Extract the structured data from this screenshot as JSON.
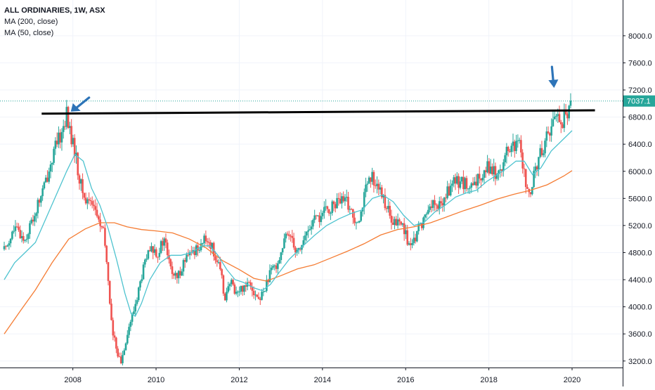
{
  "legend": {
    "title": "ALL ORDINARIES, 1W, ASX",
    "ma1": "MA (200, close)",
    "ma2": "MA (50, close)"
  },
  "chart_data": {
    "type": "candlestick",
    "symbol": "ALL ORDINARIES",
    "interval": "1W",
    "exchange": "ASX",
    "last_price": "7037.1",
    "last_value": 7037.1,
    "ylim": [
      2850,
      8450
    ],
    "xlim": [
      2006.35,
      2020.8
    ],
    "y_ticks": [
      3200,
      3600,
      4000,
      4400,
      4800,
      5200,
      5600,
      6000,
      6400,
      6800,
      7200,
      7600,
      8000
    ],
    "y_tick_labels": [
      "3200.0",
      "3600.0",
      "4000.0",
      "4400.0",
      "4800.0",
      "5200.0",
      "5600.0",
      "6000.0",
      "6400.0",
      "6800.0",
      "7200.0",
      "7600.0",
      "8000.0"
    ],
    "x_ticks": [
      2008,
      2010,
      2012,
      2014,
      2016,
      2018,
      2020
    ],
    "x_tick_labels": [
      "2008",
      "2010",
      "2012",
      "2014",
      "2016",
      "2018",
      "2020"
    ],
    "price_path": [
      [
        2006.35,
        4850
      ],
      [
        2006.6,
        5150
      ],
      [
        2006.85,
        5000
      ],
      [
        2007.1,
        5400
      ],
      [
        2007.35,
        5850
      ],
      [
        2007.55,
        6300
      ],
      [
        2007.75,
        6600
      ],
      [
        2007.85,
        6850
      ],
      [
        2007.95,
        6500
      ],
      [
        2008.05,
        6300
      ],
      [
        2008.15,
        5900
      ],
      [
        2008.3,
        5550
      ],
      [
        2008.45,
        5600
      ],
      [
        2008.6,
        5300
      ],
      [
        2008.75,
        5050
      ],
      [
        2008.85,
        4400
      ],
      [
        2008.95,
        3600
      ],
      [
        2009.05,
        3400
      ],
      [
        2009.15,
        3150
      ],
      [
        2009.3,
        3600
      ],
      [
        2009.45,
        3900
      ],
      [
        2009.6,
        4300
      ],
      [
        2009.75,
        4700
      ],
      [
        2009.9,
        4850
      ],
      [
        2010.05,
        4800
      ],
      [
        2010.2,
        5000
      ],
      [
        2010.35,
        4550
      ],
      [
        2010.5,
        4400
      ],
      [
        2010.65,
        4650
      ],
      [
        2010.8,
        4750
      ],
      [
        2010.95,
        4850
      ],
      [
        2011.1,
        4950
      ],
      [
        2011.25,
        5000
      ],
      [
        2011.4,
        4800
      ],
      [
        2011.55,
        4500
      ],
      [
        2011.65,
        4150
      ],
      [
        2011.8,
        4350
      ],
      [
        2011.95,
        4200
      ],
      [
        2012.1,
        4300
      ],
      [
        2012.25,
        4400
      ],
      [
        2012.4,
        4150
      ],
      [
        2012.5,
        4100
      ],
      [
        2012.65,
        4350
      ],
      [
        2012.8,
        4550
      ],
      [
        2012.95,
        4700
      ],
      [
        2013.1,
        5000
      ],
      [
        2013.25,
        5100
      ],
      [
        2013.35,
        4850
      ],
      [
        2013.45,
        4850
      ],
      [
        2013.6,
        5050
      ],
      [
        2013.75,
        5250
      ],
      [
        2013.9,
        5300
      ],
      [
        2014.05,
        5400
      ],
      [
        2014.2,
        5450
      ],
      [
        2014.35,
        5550
      ],
      [
        2014.5,
        5550
      ],
      [
        2014.6,
        5550
      ],
      [
        2014.75,
        5300
      ],
      [
        2014.9,
        5350
      ],
      [
        2015.05,
        5750
      ],
      [
        2015.2,
        5900
      ],
      [
        2015.3,
        5850
      ],
      [
        2015.4,
        5650
      ],
      [
        2015.55,
        5500
      ],
      [
        2015.65,
        5200
      ],
      [
        2015.8,
        5250
      ],
      [
        2015.95,
        5200
      ],
      [
        2016.05,
        4950
      ],
      [
        2016.15,
        4850
      ],
      [
        2016.3,
        5150
      ],
      [
        2016.45,
        5300
      ],
      [
        2016.6,
        5550
      ],
      [
        2016.75,
        5450
      ],
      [
        2016.9,
        5550
      ],
      [
        2017.05,
        5750
      ],
      [
        2017.2,
        5850
      ],
      [
        2017.35,
        5850
      ],
      [
        2017.5,
        5750
      ],
      [
        2017.65,
        5750
      ],
      [
        2017.8,
        5950
      ],
      [
        2017.95,
        6100
      ],
      [
        2018.1,
        6000
      ],
      [
        2018.2,
        5950
      ],
      [
        2018.35,
        6150
      ],
      [
        2018.5,
        6350
      ],
      [
        2018.65,
        6350
      ],
      [
        2018.75,
        6400
      ],
      [
        2018.85,
        5950
      ],
      [
        2018.95,
        5700
      ],
      [
        2019.0,
        5550
      ],
      [
        2019.1,
        6000
      ],
      [
        2019.2,
        6200
      ],
      [
        2019.3,
        6350
      ],
      [
        2019.45,
        6600
      ],
      [
        2019.55,
        6750
      ],
      [
        2019.65,
        6850
      ],
      [
        2019.75,
        6700
      ],
      [
        2019.85,
        6850
      ],
      [
        2019.95,
        6900
      ],
      [
        2020.0,
        7037
      ]
    ],
    "ma50": [
      [
        2006.35,
        4400
      ],
      [
        2006.6,
        4650
      ],
      [
        2006.85,
        4800
      ],
      [
        2007.1,
        4950
      ],
      [
        2007.35,
        5300
      ],
      [
        2007.6,
        5650
      ],
      [
        2007.85,
        6000
      ],
      [
        2008.05,
        6250
      ],
      [
        2008.25,
        6150
      ],
      [
        2008.45,
        5750
      ],
      [
        2008.65,
        5500
      ],
      [
        2008.85,
        5150
      ],
      [
        2009.05,
        4700
      ],
      [
        2009.25,
        4200
      ],
      [
        2009.4,
        3900
      ],
      [
        2009.5,
        3860
      ],
      [
        2009.65,
        4050
      ],
      [
        2009.85,
        4400
      ],
      [
        2010.1,
        4650
      ],
      [
        2010.35,
        4760
      ],
      [
        2010.6,
        4760
      ],
      [
        2010.85,
        4800
      ],
      [
        2011.1,
        4900
      ],
      [
        2011.3,
        4900
      ],
      [
        2011.5,
        4750
      ],
      [
        2011.7,
        4550
      ],
      [
        2011.9,
        4400
      ],
      [
        2012.1,
        4360
      ],
      [
        2012.35,
        4280
      ],
      [
        2012.55,
        4240
      ],
      [
        2012.75,
        4330
      ],
      [
        2012.95,
        4500
      ],
      [
        2013.2,
        4700
      ],
      [
        2013.5,
        4880
      ],
      [
        2013.8,
        5050
      ],
      [
        2014.1,
        5200
      ],
      [
        2014.4,
        5300
      ],
      [
        2014.7,
        5380
      ],
      [
        2014.95,
        5430
      ],
      [
        2015.2,
        5600
      ],
      [
        2015.45,
        5650
      ],
      [
        2015.7,
        5550
      ],
      [
        2015.95,
        5350
      ],
      [
        2016.2,
        5200
      ],
      [
        2016.45,
        5250
      ],
      [
        2016.7,
        5400
      ],
      [
        2016.95,
        5500
      ],
      [
        2017.2,
        5620
      ],
      [
        2017.45,
        5680
      ],
      [
        2017.7,
        5720
      ],
      [
        2017.95,
        5850
      ],
      [
        2018.2,
        5950
      ],
      [
        2018.45,
        6050
      ],
      [
        2018.65,
        6150
      ],
      [
        2018.85,
        6150
      ],
      [
        2019.05,
        5950
      ],
      [
        2019.25,
        6050
      ],
      [
        2019.5,
        6300
      ],
      [
        2019.75,
        6450
      ],
      [
        2020.0,
        6600
      ]
    ],
    "ma200": [
      [
        2006.35,
        3600
      ],
      [
        2006.75,
        3950
      ],
      [
        2007.1,
        4250
      ],
      [
        2007.5,
        4650
      ],
      [
        2007.9,
        5000
      ],
      [
        2008.3,
        5150
      ],
      [
        2008.65,
        5240
      ],
      [
        2009.0,
        5240
      ],
      [
        2009.3,
        5180
      ],
      [
        2009.65,
        5140
      ],
      [
        2010.0,
        5120
      ],
      [
        2010.4,
        5090
      ],
      [
        2010.8,
        5000
      ],
      [
        2011.2,
        4870
      ],
      [
        2011.6,
        4680
      ],
      [
        2012.0,
        4550
      ],
      [
        2012.35,
        4420
      ],
      [
        2012.65,
        4380
      ],
      [
        2013.0,
        4460
      ],
      [
        2013.4,
        4560
      ],
      [
        2013.8,
        4620
      ],
      [
        2014.2,
        4720
      ],
      [
        2014.6,
        4820
      ],
      [
        2015.0,
        4930
      ],
      [
        2015.4,
        5060
      ],
      [
        2015.8,
        5140
      ],
      [
        2016.2,
        5180
      ],
      [
        2016.6,
        5240
      ],
      [
        2017.0,
        5330
      ],
      [
        2017.4,
        5420
      ],
      [
        2017.8,
        5500
      ],
      [
        2018.2,
        5590
      ],
      [
        2018.6,
        5660
      ],
      [
        2019.0,
        5720
      ],
      [
        2019.4,
        5800
      ],
      [
        2019.8,
        5930
      ],
      [
        2020.0,
        6010
      ]
    ],
    "trendline": [
      [
        2007.25,
        6850
      ],
      [
        2020.55,
        6900
      ]
    ],
    "colors": {
      "up": "#26a69a",
      "down": "#ef5350",
      "ma50": "#4ec3cf",
      "ma200": "#f57c33",
      "trendline": "#000000",
      "arrow": "#2d74b8",
      "price_tag": "#26a69a",
      "grid": "#f0f3fa",
      "axis": "#131722"
    },
    "grid": true,
    "arrows": [
      {
        "points_to": [
          2007.95,
          6880
        ],
        "direction": "down-left"
      },
      {
        "points_to": [
          2019.55,
          7230
        ],
        "direction": "down"
      }
    ]
  }
}
